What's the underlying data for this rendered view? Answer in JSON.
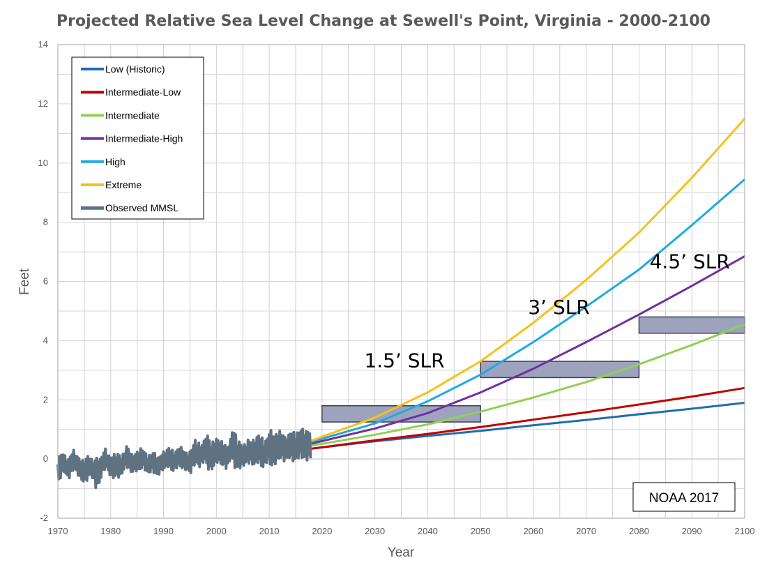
{
  "chart_data": {
    "type": "line",
    "title": "Projected Relative Sea Level Change at Sewell's Point, Virginia - 2000-2100",
    "xlabel": "Year",
    "ylabel": "Feet",
    "xlim": [
      1970,
      2100
    ],
    "ylim": [
      -2,
      14
    ],
    "xticks": [
      1970,
      1980,
      1990,
      2000,
      2010,
      2020,
      2030,
      2040,
      2050,
      2060,
      2070,
      2080,
      2090,
      2100
    ],
    "yticks": [
      -2,
      0,
      2,
      4,
      6,
      8,
      10,
      12,
      14
    ],
    "grid": true,
    "legend_position": "top-left",
    "series": [
      {
        "name": "Low (Historic)",
        "color": "#1f6cb0",
        "x": [
          2018,
          2030,
          2040,
          2050,
          2060,
          2070,
          2080,
          2090,
          2100
        ],
        "values": [
          0.35,
          0.6,
          0.78,
          0.95,
          1.14,
          1.32,
          1.51,
          1.7,
          1.9
        ]
      },
      {
        "name": "Intermediate-Low",
        "color": "#c00000",
        "x": [
          2018,
          2030,
          2040,
          2050,
          2060,
          2070,
          2080,
          2090,
          2100
        ],
        "values": [
          0.35,
          0.63,
          0.85,
          1.08,
          1.33,
          1.58,
          1.84,
          2.11,
          2.4
        ]
      },
      {
        "name": "Intermediate",
        "color": "#92d050",
        "x": [
          2018,
          2030,
          2040,
          2050,
          2060,
          2070,
          2080,
          2090,
          2100
        ],
        "values": [
          0.45,
          0.82,
          1.17,
          1.6,
          2.08,
          2.6,
          3.2,
          3.85,
          4.55
        ]
      },
      {
        "name": "Intermediate-High",
        "color": "#7030a0",
        "x": [
          2018,
          2030,
          2040,
          2050,
          2060,
          2070,
          2080,
          2090,
          2100
        ],
        "values": [
          0.52,
          1.03,
          1.55,
          2.25,
          3.05,
          3.95,
          4.88,
          5.85,
          6.85
        ]
      },
      {
        "name": "High",
        "color": "#1eaadf",
        "x": [
          2018,
          2030,
          2040,
          2050,
          2060,
          2070,
          2080,
          2090,
          2100
        ],
        "values": [
          0.58,
          1.2,
          1.95,
          2.85,
          3.95,
          5.15,
          6.4,
          7.9,
          9.45
        ]
      },
      {
        "name": "Extreme",
        "color": "#f5c11b",
        "x": [
          2018,
          2030,
          2040,
          2050,
          2060,
          2070,
          2080,
          2090,
          2100
        ],
        "values": [
          0.62,
          1.4,
          2.25,
          3.3,
          4.6,
          6.05,
          7.65,
          9.5,
          11.5
        ]
      },
      {
        "name": "Observed MMSL",
        "color": "#5f7282",
        "x": [
          1970,
          1971,
          1972,
          1973,
          1974,
          1975,
          1976,
          1977,
          1978,
          1979,
          1980,
          1981,
          1982,
          1983,
          1984,
          1985,
          1986,
          1987,
          1988,
          1989,
          1990,
          1991,
          1992,
          1993,
          1994,
          1995,
          1996,
          1997,
          1998,
          1999,
          2000,
          2001,
          2002,
          2003,
          2004,
          2005,
          2006,
          2007,
          2008,
          2009,
          2010,
          2011,
          2012,
          2013,
          2014,
          2015,
          2016,
          2017,
          2018
        ],
        "values": [
          -0.4,
          -0.1,
          -0.35,
          0.0,
          -0.3,
          -0.45,
          -0.2,
          -0.5,
          -0.35,
          0.05,
          -0.3,
          -0.2,
          -0.25,
          0.1,
          -0.15,
          -0.1,
          0.05,
          -0.2,
          -0.1,
          -0.25,
          -0.05,
          0.05,
          -0.1,
          0.1,
          -0.05,
          -0.15,
          0.25,
          0.1,
          0.35,
          0.05,
          0.3,
          0.2,
          0.05,
          0.45,
          0.15,
          0.1,
          0.25,
          0.2,
          0.35,
          0.15,
          0.4,
          0.3,
          0.5,
          0.35,
          0.45,
          0.4,
          0.55,
          0.45,
          0.5
        ],
        "spread": [
          0.4,
          0.3,
          0.35,
          0.3,
          0.35,
          0.4,
          0.3,
          0.5,
          0.35,
          0.3,
          0.4,
          0.4,
          0.3,
          0.35,
          0.3,
          0.35,
          0.3,
          0.3,
          0.35,
          0.3,
          0.3,
          0.35,
          0.3,
          0.35,
          0.3,
          0.4,
          0.4,
          0.35,
          0.55,
          0.45,
          0.4,
          0.4,
          0.35,
          0.6,
          0.45,
          0.35,
          0.4,
          0.45,
          0.5,
          0.4,
          0.6,
          0.5,
          0.45,
          0.4,
          0.5,
          0.45,
          0.5,
          0.5,
          0.5
        ]
      }
    ],
    "boxes": [
      {
        "x0": 2020,
        "x1": 2050,
        "y0": 1.25,
        "y1": 1.8,
        "color": "#9da3bd",
        "border": "#3a3f55"
      },
      {
        "x0": 2050,
        "x1": 2080,
        "y0": 2.75,
        "y1": 3.3,
        "color": "#9da3bd",
        "border": "#3a3f55"
      },
      {
        "x0": 2080,
        "x1": 2100,
        "y0": 4.25,
        "y1": 4.8,
        "color": "#9da3bd",
        "border": "#3a3f55"
      }
    ],
    "annotations": [
      {
        "text": "1.5’ SLR",
        "x": 2028,
        "y": 3.1
      },
      {
        "text": "3’ SLR",
        "x": 2059,
        "y": 4.9
      },
      {
        "text": "4.5’ SLR",
        "x": 2082,
        "y": 6.45
      }
    ],
    "credit": "NOAA 2017"
  }
}
